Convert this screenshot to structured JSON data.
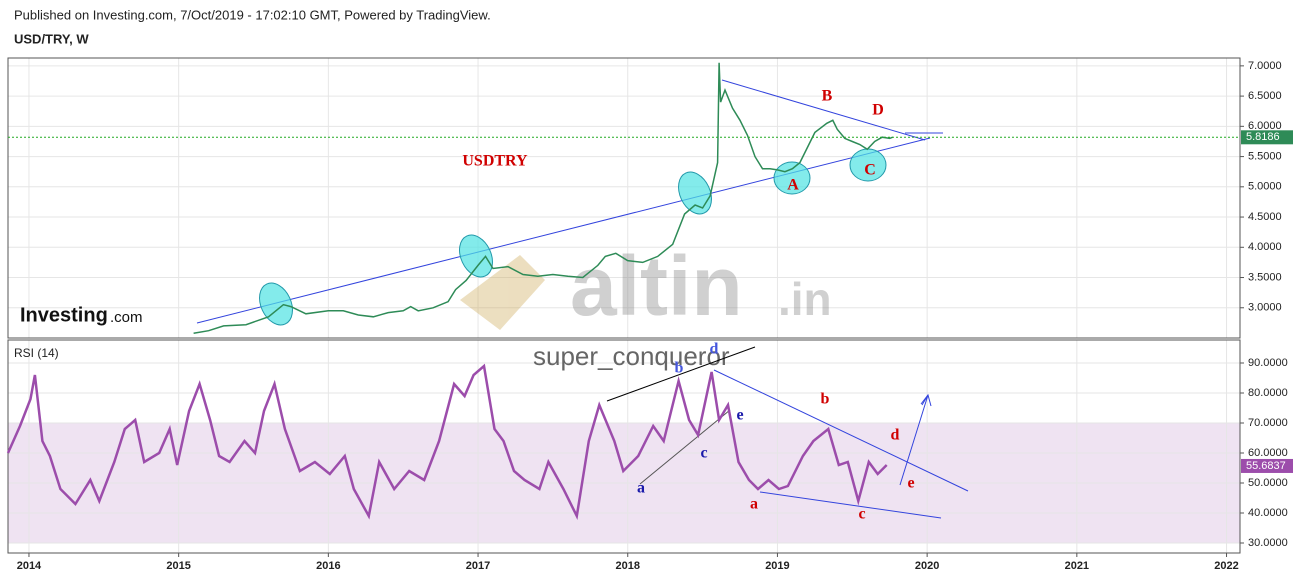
{
  "header": {
    "published": "Published on Investing.com, 7/Oct/2019 - 17:02:10 GMT, Powered by TradingView.",
    "symbol": "USD/TRY, W"
  },
  "logo": {
    "brand": "Investing",
    "suffix": ".com"
  },
  "watermark": {
    "name": "altin",
    "suffix": ".in",
    "author": "super_conqueror"
  },
  "chart_data": [
    {
      "type": "line",
      "color": "#2e8b57",
      "x": [
        2015.1,
        2015.2,
        2015.3,
        2015.45,
        2015.6,
        2015.7,
        2015.75,
        2015.85,
        2016.0,
        2016.1,
        2016.2,
        2016.3,
        2016.4,
        2016.5,
        2016.55,
        2016.6,
        2016.7,
        2016.8,
        2016.85,
        2016.92,
        2017.0,
        2017.05,
        2017.1,
        2017.2,
        2017.3,
        2017.4,
        2017.5,
        2017.6,
        2017.7,
        2017.8,
        2017.85,
        2017.92,
        2018.0,
        2018.1,
        2018.2,
        2018.3,
        2018.38,
        2018.45,
        2018.5,
        2018.55,
        2018.6,
        2018.61,
        2018.62,
        2018.65,
        2018.7,
        2018.75,
        2018.8,
        2018.85,
        2018.9,
        2018.95,
        2019.0,
        2019.05,
        2019.1,
        2019.15,
        2019.2,
        2019.25,
        2019.33,
        2019.37,
        2019.4,
        2019.45,
        2019.5,
        2019.55,
        2019.6,
        2019.65,
        2019.7,
        2019.75,
        2019.77
      ],
      "values": [
        2.58,
        2.62,
        2.7,
        2.72,
        2.85,
        3.05,
        3.02,
        2.9,
        2.95,
        2.95,
        2.88,
        2.85,
        2.92,
        2.95,
        3.02,
        2.95,
        3.0,
        3.1,
        3.3,
        3.45,
        3.7,
        3.85,
        3.65,
        3.68,
        3.55,
        3.52,
        3.55,
        3.52,
        3.5,
        3.7,
        3.85,
        3.9,
        3.78,
        3.75,
        3.85,
        4.05,
        4.55,
        4.7,
        4.65,
        4.85,
        5.4,
        7.05,
        6.4,
        6.6,
        6.3,
        6.1,
        5.85,
        5.5,
        5.3,
        5.3,
        5.28,
        5.25,
        5.3,
        5.4,
        5.65,
        5.9,
        6.05,
        6.1,
        5.95,
        5.8,
        5.75,
        5.7,
        5.62,
        5.75,
        5.82,
        5.8,
        5.82
      ],
      "last": 5.8186,
      "xlim": [
        2013.86,
        2022.09
      ],
      "ylim": [
        2.5,
        7.13
      ],
      "yticks": [
        {
          "value": 3,
          "label": "3.0000"
        },
        {
          "value": 3.5,
          "label": "3.5000"
        },
        {
          "value": 4,
          "label": "4.0000"
        },
        {
          "value": 4.5,
          "label": "4.5000"
        },
        {
          "value": 5,
          "label": "5.0000"
        },
        {
          "value": 5.5,
          "label": "5.5000"
        },
        {
          "value": 6,
          "label": "6.0000"
        },
        {
          "value": 6.5,
          "label": "6.5000"
        },
        {
          "value": 7,
          "label": "7.0000"
        }
      ],
      "grid": true,
      "annotations": [
        "USDTRY",
        "A",
        "B",
        "C",
        "D"
      ]
    },
    {
      "type": "line",
      "title": "RSI (14)",
      "color": "#9c4dab",
      "x": [
        2013.86,
        2013.94,
        2014.01,
        2014.04,
        2014.09,
        2014.14,
        2014.21,
        2014.31,
        2014.41,
        2014.47,
        2014.57,
        2014.64,
        2014.71,
        2014.77,
        2014.87,
        2014.94,
        2014.99,
        2015.07,
        2015.14,
        2015.21,
        2015.27,
        2015.34,
        2015.44,
        2015.51,
        2015.57,
        2015.64,
        2015.71,
        2015.81,
        2015.91,
        2016.01,
        2016.11,
        2016.17,
        2016.27,
        2016.34,
        2016.44,
        2016.54,
        2016.64,
        2016.74,
        2016.84,
        2016.91,
        2016.97,
        2017.04,
        2017.11,
        2017.17,
        2017.24,
        2017.31,
        2017.41,
        2017.47,
        2017.57,
        2017.66,
        2017.74,
        2017.81,
        2017.91,
        2017.97,
        2018.07,
        2018.17,
        2018.24,
        2018.34,
        2018.41,
        2018.47,
        2018.56,
        2018.61,
        2018.67,
        2018.74,
        2018.81,
        2018.87,
        2018.94,
        2019.01,
        2019.07,
        2019.17,
        2019.24,
        2019.34,
        2019.41,
        2019.47,
        2019.54,
        2019.61,
        2019.67,
        2019.73
      ],
      "values": [
        60,
        69,
        78,
        86,
        64,
        59,
        48,
        43,
        51,
        44,
        57,
        68,
        71,
        57,
        60,
        68,
        56,
        74,
        83,
        71,
        59,
        57,
        64,
        60,
        74,
        83,
        68,
        54,
        57,
        53,
        59,
        48,
        39,
        57,
        48,
        54,
        51,
        64,
        83,
        79,
        86,
        89,
        68,
        64,
        54,
        51,
        48,
        57,
        48,
        39,
        64,
        76,
        64,
        54,
        59,
        69,
        64,
        84,
        71,
        66,
        87,
        71,
        76,
        57,
        51,
        48,
        51,
        48,
        49,
        59,
        64,
        68,
        56,
        57,
        44,
        57,
        53,
        56
      ],
      "last": 55.6837,
      "band": [
        30,
        70
      ],
      "xlim": [
        2013.86,
        2022.09
      ],
      "ylim": [
        26.67,
        97.67
      ],
      "xticks": [
        2014,
        2015,
        2016,
        2017,
        2018,
        2019,
        2020,
        2021,
        2022
      ],
      "yticks": [
        {
          "value": 30,
          "label": "30.0000"
        },
        {
          "value": 40,
          "label": "40.0000"
        },
        {
          "value": 50,
          "label": "50.0000"
        },
        {
          "value": 60,
          "label": "60.0000"
        },
        {
          "value": 70,
          "label": "70.0000"
        },
        {
          "value": 80,
          "label": "80.0000"
        },
        {
          "value": 90,
          "label": "90.0000"
        }
      ],
      "grid": true,
      "annotations": [
        "a",
        "b",
        "c",
        "d",
        "e",
        "a",
        "b",
        "c",
        "d",
        "e"
      ]
    }
  ]
}
